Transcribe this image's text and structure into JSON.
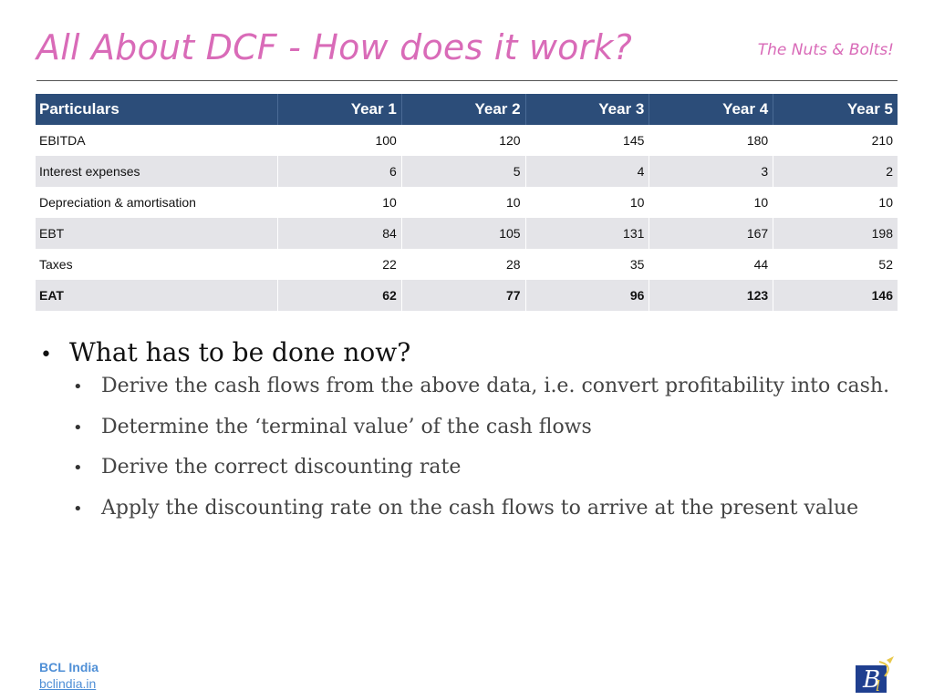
{
  "header": {
    "title": "All About DCF - How does it work?",
    "tagline": "The Nuts & Bolts!"
  },
  "table": {
    "columns": [
      "Particulars",
      "Year 1",
      "Year 2",
      "Year 3",
      "Year 4",
      "Year 5"
    ],
    "rows": [
      {
        "label": "EBITDA",
        "values": [
          "100",
          "120",
          "145",
          "180",
          "210"
        ]
      },
      {
        "label": "Interest expenses",
        "values": [
          "6",
          "5",
          "4",
          "3",
          "2"
        ]
      },
      {
        "label": "Depreciation & amortisation",
        "values": [
          "10",
          "10",
          "10",
          "10",
          "10"
        ]
      },
      {
        "label": "EBT",
        "values": [
          "84",
          "105",
          "131",
          "167",
          "198"
        ]
      },
      {
        "label": "Taxes",
        "values": [
          "22",
          "28",
          "35",
          "44",
          "52"
        ]
      },
      {
        "label": "EAT",
        "values": [
          "62",
          "77",
          "96",
          "123",
          "146"
        ]
      }
    ]
  },
  "bullets": {
    "main": "What has to be done now?",
    "subs": [
      "Derive the cash flows from the above data, i.e. convert profitability into cash.",
      "Determine the ‘terminal value’ of the cash flows",
      "Derive the correct discounting rate",
      "Apply the discounting rate on the cash flows to arrive at the present value"
    ]
  },
  "footer": {
    "name": "BCL India",
    "link": "bclindia.in"
  },
  "colors": {
    "title": "#d96bb8",
    "table_header": "#2c4d79",
    "row_alt": "#e4e4e8",
    "footer": "#4f8fd6"
  },
  "icons": {
    "logo": "bcl-logo-icon"
  }
}
